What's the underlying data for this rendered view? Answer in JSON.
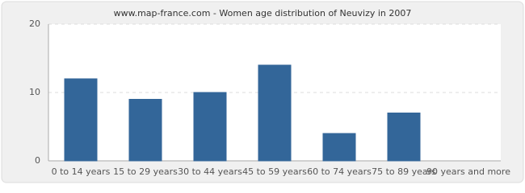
{
  "chart_data": {
    "type": "bar",
    "title": "www.map-france.com - Women age distribution of Neuvizy in 2007",
    "categories": [
      "0 to 14 years",
      "15 to 29 years",
      "30 to 44 years",
      "45 to 59 years",
      "60 to 74 years",
      "75 to 89 years",
      "90 years and more"
    ],
    "values": [
      12,
      9,
      10,
      14,
      4,
      7,
      0
    ],
    "color": "#336699",
    "ylim": [
      0,
      20
    ],
    "yticks": [
      0,
      10,
      20
    ],
    "grid": true
  }
}
